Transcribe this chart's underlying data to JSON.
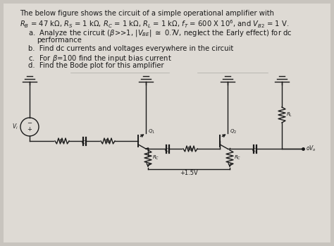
{
  "fig_bg": "#c8c4be",
  "paper_bg": "#e8e4de",
  "text_color": "#1a1a1a",
  "circuit_bg": "#e0dbd4",
  "supply_label": "+1.5V",
  "line1": "The below figure shows the circuit of a simple operational amplifier with",
  "line2": "RB = 47 kΩ, Rs = 1 kΩ, Rc = 1 kΩ, RL = 1 kΩ, fT = 600 X 10⁶, and VB2 = 1 V.",
  "item_a1": "a.  Analyze the circuit (β>>1, |VBEl ≅ 0.7V, neglect the Early effect) for dc",
  "item_a2": "     performance",
  "item_b": "b.  Find dc currents and voltages everywhere in the circuit",
  "item_c": "c.  For β=100 find the input bias current",
  "item_d": "d.  Find the Bode plot for this amplifier"
}
